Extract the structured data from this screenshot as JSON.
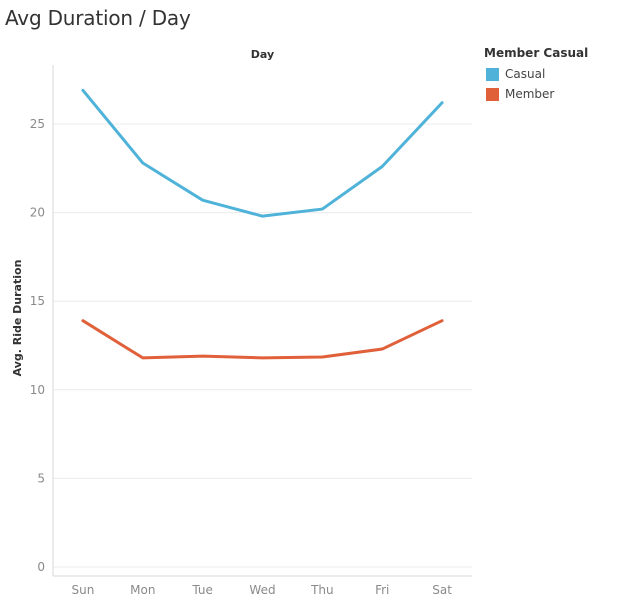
{
  "title": "Avg Duration / Day",
  "legend": {
    "title": "Member Casual",
    "items": [
      {
        "label": "Casual",
        "color": "#4fb3d9"
      },
      {
        "label": "Member",
        "color": "#e0603a"
      }
    ]
  },
  "chart_data": {
    "type": "line",
    "title": "Avg Duration / Day",
    "xlabel": "Day",
    "ylabel": "Avg. Ride Duration",
    "categories": [
      "Sun",
      "Mon",
      "Tue",
      "Wed",
      "Thu",
      "Fri",
      "Sat"
    ],
    "yticks": [
      0,
      5,
      10,
      15,
      20,
      25
    ],
    "ylim": [
      0,
      28
    ],
    "grid": true,
    "legend_position": "top-right",
    "series": [
      {
        "name": "Casual",
        "color": "#4fb3d9",
        "values": [
          26.9,
          22.8,
          20.7,
          19.8,
          20.2,
          22.6,
          26.2
        ]
      },
      {
        "name": "Member",
        "color": "#e0603a",
        "values": [
          13.9,
          11.8,
          11.9,
          11.8,
          11.85,
          12.3,
          13.9
        ]
      }
    ]
  }
}
